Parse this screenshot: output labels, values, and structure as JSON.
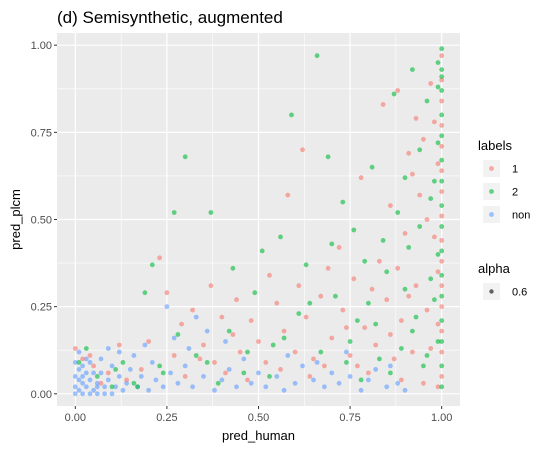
{
  "chart_data": {
    "type": "scatter",
    "title": "(d) Semisynthetic, augmented",
    "xlabel": "pred_human",
    "ylabel": "pred_plcm",
    "xlim": [
      -0.05,
      1.05
    ],
    "ylim": [
      -0.035,
      1.035
    ],
    "x_ticks": [
      "0.00",
      "0.25",
      "0.50",
      "0.75",
      "1.00"
    ],
    "y_ticks": [
      "0.00",
      "0.25",
      "0.50",
      "0.75",
      "1.00"
    ],
    "grid": true,
    "legend_placement": "right",
    "alpha": 0.6,
    "legend": {
      "labels_title": "labels",
      "labels": [
        "1",
        "2",
        "non"
      ],
      "alpha_title": "alpha",
      "alpha_value": "0.6"
    },
    "colors": {
      "1": "#F8766D",
      "2": "#00BA38",
      "non": "#619CFF"
    },
    "series": [
      {
        "name": "non",
        "points": [
          [
            0.0,
            0.02
          ],
          [
            0.01,
            0.01
          ],
          [
            0.02,
            0.03
          ],
          [
            0.0,
            0.05
          ],
          [
            0.01,
            0.07
          ],
          [
            0.03,
            0.02
          ],
          [
            0.04,
            0.04
          ],
          [
            0.02,
            0.08
          ],
          [
            0.05,
            0.01
          ],
          [
            0.06,
            0.03
          ],
          [
            0.07,
            0.06
          ],
          [
            0.08,
            0.02
          ],
          [
            0.03,
            0.1
          ],
          [
            0.01,
            0.12
          ],
          [
            0.09,
            0.04
          ],
          [
            0.1,
            0.08
          ],
          [
            0.11,
            0.02
          ],
          [
            0.12,
            0.05
          ],
          [
            0.13,
            0.01
          ],
          [
            0.04,
            0.0
          ],
          [
            0.02,
            0.0
          ],
          [
            0.06,
            0.0
          ],
          [
            0.08,
            0.0
          ],
          [
            0.0,
            0.09
          ],
          [
            0.05,
            0.06
          ],
          [
            0.07,
            0.1
          ],
          [
            0.14,
            0.03
          ],
          [
            0.15,
            0.07
          ],
          [
            0.17,
            0.02
          ],
          [
            0.18,
            0.05
          ],
          [
            0.2,
            0.01
          ],
          [
            0.22,
            0.04
          ],
          [
            0.24,
            0.02
          ],
          [
            0.25,
            0.25
          ],
          [
            0.19,
            0.14
          ],
          [
            0.16,
            0.11
          ],
          [
            0.26,
            0.06
          ],
          [
            0.28,
            0.03
          ],
          [
            0.3,
            0.08
          ],
          [
            0.32,
            0.02
          ],
          [
            0.35,
            0.05
          ],
          [
            0.38,
            0.01
          ],
          [
            0.4,
            0.04
          ],
          [
            0.42,
            0.07
          ],
          [
            0.44,
            0.02
          ],
          [
            0.46,
            0.1
          ],
          [
            0.48,
            0.03
          ],
          [
            0.5,
            0.06
          ],
          [
            0.52,
            0.02
          ],
          [
            0.55,
            0.05
          ],
          [
            0.57,
            0.01
          ],
          [
            0.6,
            0.03
          ],
          [
            0.62,
            0.08
          ],
          [
            0.65,
            0.04
          ],
          [
            0.68,
            0.02
          ],
          [
            0.7,
            0.06
          ],
          [
            0.72,
            0.03
          ],
          [
            0.75,
            0.05
          ],
          [
            0.78,
            0.01
          ],
          [
            0.8,
            0.04
          ],
          [
            0.82,
            0.07
          ],
          [
            0.85,
            0.02
          ],
          [
            0.88,
            0.03
          ],
          [
            0.9,
            0.01
          ],
          [
            0.36,
            0.18
          ],
          [
            0.31,
            0.13
          ],
          [
            0.27,
            0.16
          ],
          [
            0.21,
            0.09
          ],
          [
            0.12,
            0.12
          ],
          [
            0.09,
            0.13
          ],
          [
            0.03,
            0.06
          ],
          [
            0.01,
            0.04
          ],
          [
            0.0,
            0.0
          ],
          [
            0.02,
            0.05
          ],
          [
            0.04,
            0.09
          ],
          [
            0.06,
            0.02
          ],
          [
            0.1,
            0.0
          ],
          [
            0.33,
            0.22
          ],
          [
            0.41,
            0.15
          ],
          [
            0.58,
            0.11
          ],
          [
            0.66,
            0.09
          ],
          [
            0.74,
            0.12
          ],
          [
            0.86,
            0.08
          ]
        ]
      },
      {
        "name": "1",
        "points": [
          [
            0.0,
            0.13
          ],
          [
            0.02,
            0.1
          ],
          [
            0.05,
            0.08
          ],
          [
            0.09,
            0.06
          ],
          [
            0.14,
            0.04
          ],
          [
            0.2,
            0.15
          ],
          [
            0.23,
            0.39
          ],
          [
            0.25,
            0.29
          ],
          [
            0.29,
            0.2
          ],
          [
            0.32,
            0.24
          ],
          [
            0.35,
            0.14
          ],
          [
            0.38,
            0.09
          ],
          [
            0.4,
            0.22
          ],
          [
            0.43,
            0.17
          ],
          [
            0.45,
            0.12
          ],
          [
            0.48,
            0.21
          ],
          [
            0.5,
            0.15
          ],
          [
            0.52,
            0.09
          ],
          [
            0.55,
            0.26
          ],
          [
            0.57,
            0.18
          ],
          [
            0.58,
            0.57
          ],
          [
            0.6,
            0.12
          ],
          [
            0.62,
            0.7
          ],
          [
            0.63,
            0.22
          ],
          [
            0.65,
            0.1
          ],
          [
            0.67,
            0.28
          ],
          [
            0.68,
            0.08
          ],
          [
            0.7,
            0.16
          ],
          [
            0.72,
            0.42
          ],
          [
            0.73,
            0.24
          ],
          [
            0.75,
            0.11
          ],
          [
            0.76,
            0.33
          ],
          [
            0.78,
            0.62
          ],
          [
            0.79,
            0.19
          ],
          [
            0.8,
            0.06
          ],
          [
            0.82,
            0.14
          ],
          [
            0.83,
            0.38
          ],
          [
            0.84,
            0.83
          ],
          [
            0.85,
            0.27
          ],
          [
            0.86,
            0.54
          ],
          [
            0.87,
            0.1
          ],
          [
            0.88,
            0.36
          ],
          [
            0.89,
            0.21
          ],
          [
            0.9,
            0.46
          ],
          [
            0.91,
            0.69
          ],
          [
            0.92,
            0.12
          ],
          [
            0.93,
            0.31
          ],
          [
            0.94,
            0.57
          ],
          [
            0.95,
            0.73
          ],
          [
            0.96,
            0.24
          ],
          [
            0.97,
            0.89
          ],
          [
            0.98,
            0.45
          ],
          [
            0.99,
            0.2
          ],
          [
            1.0,
            0.05
          ],
          [
            1.0,
            0.12
          ],
          [
            1.0,
            0.18
          ],
          [
            1.0,
            0.25
          ],
          [
            1.0,
            0.31
          ],
          [
            1.0,
            0.38
          ],
          [
            1.0,
            0.44
          ],
          [
            1.0,
            0.51
          ],
          [
            1.0,
            0.58
          ],
          [
            1.0,
            0.64
          ],
          [
            1.0,
            0.71
          ],
          [
            1.0,
            0.77
          ],
          [
            1.0,
            0.84
          ],
          [
            1.0,
            0.9
          ],
          [
            1.0,
            0.97
          ],
          [
            0.99,
            0.02
          ],
          [
            0.99,
            0.35
          ],
          [
            0.99,
            0.66
          ],
          [
            0.97,
            0.13
          ],
          [
            0.96,
            0.5
          ],
          [
            0.95,
            0.03
          ],
          [
            0.93,
            0.79
          ],
          [
            0.91,
            0.28
          ],
          [
            0.89,
            0.04
          ],
          [
            0.86,
            0.17
          ],
          [
            0.81,
            0.3
          ],
          [
            0.77,
            0.08
          ],
          [
            0.74,
            0.19
          ],
          [
            0.69,
            0.36
          ],
          [
            0.64,
            0.05
          ],
          [
            0.61,
            0.31
          ],
          [
            0.56,
            0.07
          ],
          [
            0.53,
            0.34
          ],
          [
            0.47,
            0.04
          ],
          [
            0.44,
            0.27
          ],
          [
            0.41,
            0.06
          ],
          [
            0.37,
            0.31
          ],
          [
            0.34,
            0.1
          ],
          [
            0.3,
            0.05
          ],
          [
            0.27,
            0.11
          ],
          [
            0.18,
            0.07
          ],
          [
            0.12,
            0.14
          ],
          [
            0.07,
            0.03
          ],
          [
            0.04,
            0.11
          ],
          [
            0.88,
            0.87
          ],
          [
            0.92,
            0.63
          ],
          [
            0.98,
            0.78
          ]
        ]
      },
      {
        "name": "2",
        "points": [
          [
            0.01,
            0.09
          ],
          [
            0.03,
            0.13
          ],
          [
            0.06,
            0.05
          ],
          [
            0.1,
            0.02
          ],
          [
            0.13,
            0.09
          ],
          [
            0.16,
            0.03
          ],
          [
            0.19,
            0.29
          ],
          [
            0.21,
            0.37
          ],
          [
            0.24,
            0.06
          ],
          [
            0.27,
            0.52
          ],
          [
            0.3,
            0.68
          ],
          [
            0.33,
            0.11
          ],
          [
            0.37,
            0.52
          ],
          [
            0.39,
            0.03
          ],
          [
            0.42,
            0.18
          ],
          [
            0.46,
            0.06
          ],
          [
            0.49,
            0.29
          ],
          [
            0.51,
            0.41
          ],
          [
            0.54,
            0.14
          ],
          [
            0.56,
            0.45
          ],
          [
            0.59,
            0.8
          ],
          [
            0.61,
            0.23
          ],
          [
            0.63,
            0.37
          ],
          [
            0.66,
            0.97
          ],
          [
            0.67,
            0.12
          ],
          [
            0.69,
            0.68
          ],
          [
            0.71,
            0.28
          ],
          [
            0.73,
            0.55
          ],
          [
            0.75,
            0.15
          ],
          [
            0.76,
            0.47
          ],
          [
            0.77,
            0.21
          ],
          [
            0.78,
            0.04
          ],
          [
            0.8,
            0.26
          ],
          [
            0.81,
            0.65
          ],
          [
            0.83,
            0.1
          ],
          [
            0.85,
            0.35
          ],
          [
            0.87,
            0.86
          ],
          [
            0.88,
            0.52
          ],
          [
            0.89,
            0.13
          ],
          [
            0.9,
            0.62
          ],
          [
            0.91,
            0.42
          ],
          [
            0.92,
            0.93
          ],
          [
            0.93,
            0.22
          ],
          [
            0.94,
            0.48
          ],
          [
            0.95,
            0.08
          ],
          [
            0.96,
            0.84
          ],
          [
            0.97,
            0.33
          ],
          [
            0.98,
            0.61
          ],
          [
            0.99,
            0.95
          ],
          [
            1.0,
            0.02
          ],
          [
            1.0,
            0.08
          ],
          [
            1.0,
            0.15
          ],
          [
            1.0,
            0.21
          ],
          [
            1.0,
            0.28
          ],
          [
            1.0,
            0.34
          ],
          [
            1.0,
            0.41
          ],
          [
            1.0,
            0.48
          ],
          [
            1.0,
            0.54
          ],
          [
            1.0,
            0.61
          ],
          [
            1.0,
            0.67
          ],
          [
            1.0,
            0.74
          ],
          [
            1.0,
            0.8
          ],
          [
            1.0,
            0.87
          ],
          [
            1.0,
            0.93
          ],
          [
            1.0,
            0.99
          ],
          [
            0.99,
            0.15
          ],
          [
            0.99,
            0.4
          ],
          [
            0.99,
            0.72
          ],
          [
            0.98,
            0.27
          ],
          [
            0.97,
            0.56
          ],
          [
            0.96,
            0.11
          ],
          [
            0.94,
            0.7
          ],
          [
            0.92,
            0.18
          ],
          [
            0.9,
            0.3
          ],
          [
            0.86,
            0.06
          ],
          [
            0.84,
            0.44
          ],
          [
            0.82,
            0.2
          ],
          [
            0.79,
            0.38
          ],
          [
            0.74,
            0.09
          ],
          [
            0.7,
            0.43
          ],
          [
            0.64,
            0.26
          ],
          [
            0.57,
            0.16
          ],
          [
            0.53,
            0.05
          ],
          [
            0.47,
            0.12
          ],
          [
            0.43,
            0.36
          ],
          [
            0.36,
            0.09
          ],
          [
            0.28,
            0.17
          ],
          [
            0.23,
            0.08
          ],
          [
            0.17,
            0.02
          ],
          [
            0.11,
            0.07
          ],
          [
            0.99,
            0.88
          ],
          [
            1.0,
            0.91
          ]
        ]
      }
    ]
  }
}
